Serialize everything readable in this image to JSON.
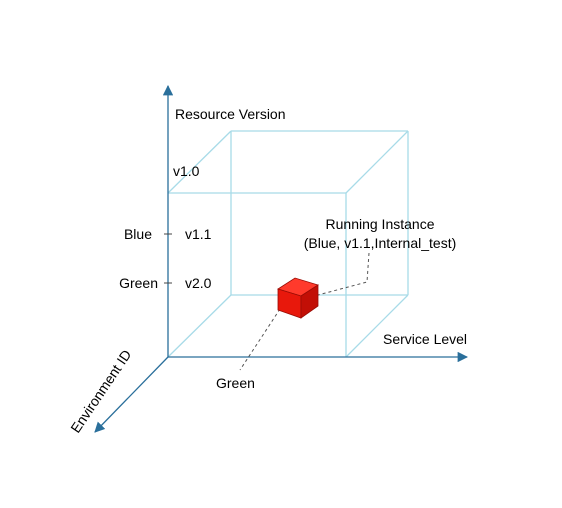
{
  "axes": {
    "vertical": {
      "label": "Resource Version"
    },
    "horizontal": {
      "label": "Service Level"
    },
    "depth": {
      "label": "Environment ID"
    }
  },
  "version_ticks": [
    "v1.0",
    "v1.1",
    "v2.0"
  ],
  "environment_ticks": [
    "Blue",
    "Green"
  ],
  "depth_tick": "Green",
  "instance": {
    "title": "Running Instance",
    "detail": "(Blue, v1.1,Internal_test)"
  },
  "colors": {
    "axis": "#2a6f9b",
    "cube_edge": "#a8dbe8",
    "instance_face": "#e8180c",
    "instance_shade": "#c20f06",
    "leader": "#555555"
  }
}
